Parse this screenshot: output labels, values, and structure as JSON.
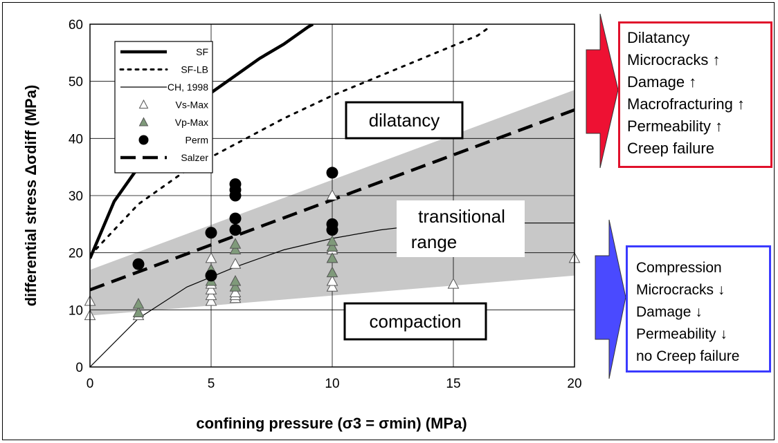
{
  "chart_data": {
    "type": "scatter",
    "xlabel": "confining pressure (σ3 = σmin)  (MPa)",
    "ylabel": "differential stress Δσdiff (MPa)",
    "xlim": [
      0,
      20
    ],
    "ylim": [
      0,
      60
    ],
    "x_ticks": [
      "0",
      "5",
      "10",
      "15",
      "20"
    ],
    "y_ticks": [
      "0",
      "10",
      "20",
      "30",
      "40",
      "50",
      "60"
    ],
    "grid": true,
    "legend_position": "top-left",
    "legend": [
      {
        "label": "SF",
        "style": "thick-solid"
      },
      {
        "label": "SF-LB",
        "style": "dotted"
      },
      {
        "label": "CH, 1998",
        "style": "thin-solid"
      },
      {
        "label": "Vs-Max",
        "style": "open-triangle"
      },
      {
        "label": "Vp-Max",
        "style": "green-triangle"
      },
      {
        "label": "Perm",
        "style": "filled-circle"
      },
      {
        "label": "Salzer",
        "style": "long-dash"
      }
    ],
    "series": [
      {
        "name": "SF",
        "type": "line",
        "x": [
          0,
          1,
          2,
          3,
          4,
          5,
          6,
          7,
          8,
          9,
          9.2
        ],
        "y": [
          19,
          29,
          35,
          40,
          44,
          48,
          51,
          54,
          56.5,
          59.5,
          60
        ]
      },
      {
        "name": "SF-LB",
        "type": "line",
        "x": [
          0,
          2,
          4,
          6,
          8,
          10,
          12,
          14,
          16,
          16.5
        ],
        "y": [
          19.5,
          28.5,
          34.5,
          39,
          43.5,
          47.5,
          51,
          54.5,
          58,
          59.5
        ]
      },
      {
        "name": "CH, 1998",
        "type": "line",
        "x": [
          0,
          2,
          4,
          6,
          8,
          10,
          12,
          14,
          16,
          18,
          20
        ],
        "y": [
          0,
          8.5,
          14,
          17.5,
          20.5,
          22.5,
          24,
          25,
          25.2,
          25.2,
          25.2
        ]
      },
      {
        "name": "Salzer",
        "type": "line",
        "x": [
          0,
          20
        ],
        "y": [
          13.5,
          45
        ]
      },
      {
        "name": "Vs-Max",
        "type": "scatter",
        "x": [
          0,
          0,
          2,
          5,
          5,
          5,
          5,
          5,
          5,
          6,
          6,
          6,
          6,
          10,
          10,
          10,
          10,
          10,
          10,
          15,
          20
        ],
        "y": [
          9,
          11.5,
          9,
          11.5,
          12.5,
          13.5,
          14.5,
          17,
          19,
          12,
          12.5,
          13,
          18,
          14,
          15,
          19,
          20.5,
          21,
          30,
          14.5,
          19
        ]
      },
      {
        "name": "Vp-Max",
        "type": "scatter",
        "x": [
          2,
          2,
          5,
          5,
          6,
          6,
          6,
          6,
          10,
          10,
          10,
          10
        ],
        "y": [
          9.5,
          11,
          15,
          17,
          14,
          15,
          20.5,
          21.5,
          16.5,
          19,
          21,
          22
        ]
      },
      {
        "name": "Perm",
        "type": "scatter",
        "x": [
          2,
          5,
          5,
          6,
          6,
          6,
          6,
          6,
          10,
          10,
          10
        ],
        "y": [
          18,
          16,
          23.5,
          24,
          26,
          30,
          31,
          32,
          24,
          25,
          34
        ]
      }
    ],
    "band": {
      "x": [
        0,
        20
      ],
      "upper": [
        17,
        48.5
      ],
      "lower": [
        9,
        16
      ]
    },
    "annotations": {
      "dilatancy": "dilatancy",
      "transitional_line1": "transitional",
      "transitional_line2": "range",
      "compaction": "compaction"
    }
  },
  "dilatancy_box": {
    "accent_color": "#e0102b",
    "lines": [
      "Dilatancy",
      "Microcracks ↑",
      "Damage ↑",
      "Macrofracturing ↑",
      "Permeability ↑",
      "Creep failure"
    ]
  },
  "compression_box": {
    "accent_color": "#3a3aff",
    "lines": [
      "Compression",
      "Microcracks ↓",
      "Damage ↓",
      "Permeability ↓",
      "no Creep failure"
    ]
  }
}
